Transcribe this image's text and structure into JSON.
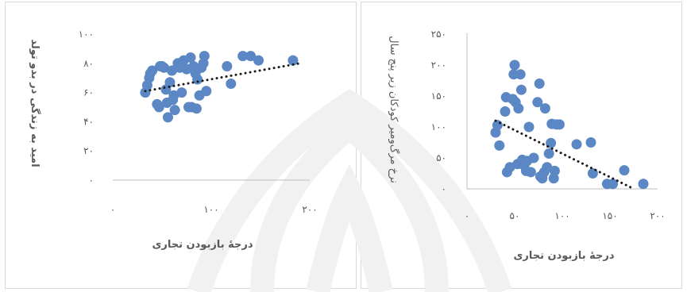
{
  "chart_data": [
    {
      "type": "scatter",
      "title": "",
      "xlabel": "درجهٔ بازبودن تجاری",
      "ylabel": "امید به زندگی در بدو تولد",
      "xlim": [
        0,
        200
      ],
      "ylim": [
        0,
        100
      ],
      "xticks": [
        "۰",
        "۱۰۰",
        "۲۰۰"
      ],
      "yticks": [
        "۰",
        "۲۰",
        "۴۰",
        "۶۰",
        "۸۰",
        "۱۰۰"
      ],
      "grid": false,
      "trendline": "linear, dotted",
      "colors": {
        "points": "#5b87c4",
        "trend": "#1a1a1a",
        "axis": "#bfbfbf",
        "text": "#595959"
      },
      "points": [
        [
          33,
          60
        ],
        [
          35,
          65
        ],
        [
          37,
          70
        ],
        [
          38,
          73
        ],
        [
          40,
          75
        ],
        [
          45,
          52
        ],
        [
          47,
          50
        ],
        [
          48,
          78
        ],
        [
          50,
          78
        ],
        [
          52,
          77
        ],
        [
          54,
          62
        ],
        [
          55,
          53
        ],
        [
          56,
          43
        ],
        [
          58,
          67
        ],
        [
          60,
          75
        ],
        [
          61,
          55
        ],
        [
          62,
          58
        ],
        [
          63,
          48
        ],
        [
          66,
          80
        ],
        [
          68,
          77
        ],
        [
          70,
          60
        ],
        [
          72,
          82
        ],
        [
          75,
          76
        ],
        [
          77,
          50
        ],
        [
          79,
          84
        ],
        [
          80,
          50
        ],
        [
          82,
          78
        ],
        [
          84,
          73
        ],
        [
          85,
          49
        ],
        [
          86,
          69
        ],
        [
          88,
          58
        ],
        [
          90,
          77
        ],
        [
          92,
          80
        ],
        [
          93,
          85
        ],
        [
          95,
          61
        ],
        [
          116,
          78
        ],
        [
          120,
          66
        ],
        [
          132,
          85
        ],
        [
          140,
          85
        ],
        [
          148,
          82
        ],
        [
          183,
          82
        ]
      ],
      "trend": [
        [
          33,
          61
        ],
        [
          190,
          80
        ]
      ]
    },
    {
      "type": "scatter",
      "title": "",
      "xlabel": "درجهٔ بازبودن تجاری",
      "ylabel": "نرخ مرگ‌ومیر کودکان زیر پنج سال",
      "xlim": [
        0,
        200
      ],
      "ylim": [
        0,
        250
      ],
      "xticks": [
        "۰",
        "۵۰",
        "۱۰۰",
        "۱۵۰",
        "۲۰۰"
      ],
      "yticks": [
        "۰",
        "۵۰",
        "۱۰۰",
        "۱۵۰",
        "۲۰۰",
        "۲۵۰"
      ],
      "grid": false,
      "trendline": "linear, dotted",
      "colors": {
        "points": "#5b87c4",
        "trend": "#1a1a1a",
        "axis": "#bfbfbf",
        "text": "#595959"
      },
      "points": [
        [
          30,
          91
        ],
        [
          32,
          103
        ],
        [
          34,
          70
        ],
        [
          40,
          125
        ],
        [
          41,
          148
        ],
        [
          42,
          27
        ],
        [
          45,
          35
        ],
        [
          48,
          145
        ],
        [
          49,
          185
        ],
        [
          50,
          200
        ],
        [
          51,
          140
        ],
        [
          53,
          40
        ],
        [
          54,
          130
        ],
        [
          56,
          185
        ],
        [
          57,
          160
        ],
        [
          58,
          47
        ],
        [
          60,
          38
        ],
        [
          62,
          29
        ],
        [
          63,
          45
        ],
        [
          65,
          100
        ],
        [
          67,
          27
        ],
        [
          70,
          50
        ],
        [
          74,
          140
        ],
        [
          76,
          170
        ],
        [
          77,
          20
        ],
        [
          79,
          17
        ],
        [
          81,
          27
        ],
        [
          82,
          130
        ],
        [
          84,
          35
        ],
        [
          86,
          57
        ],
        [
          88,
          74
        ],
        [
          89,
          105
        ],
        [
          91,
          17
        ],
        [
          92,
          29
        ],
        [
          94,
          104
        ],
        [
          97,
          104
        ],
        [
          115,
          72
        ],
        [
          130,
          75
        ],
        [
          132,
          25
        ],
        [
          147,
          8
        ],
        [
          153,
          8
        ],
        [
          165,
          30
        ],
        [
          185,
          8
        ]
      ],
      "trend": [
        [
          30,
          110
        ],
        [
          175,
          0
        ]
      ]
    }
  ]
}
